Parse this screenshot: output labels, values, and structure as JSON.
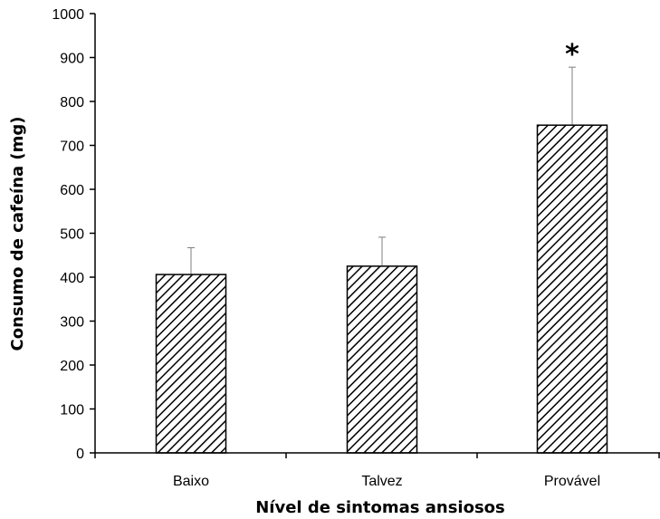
{
  "chart_data": {
    "type": "bar",
    "title": "",
    "xlabel": "Nível de sintomas ansiosos",
    "ylabel": "Consumo de cafeína (mg)",
    "categories": [
      "Baixo",
      "Talvez",
      "Provável"
    ],
    "values": [
      406,
      425,
      746
    ],
    "error_upper": [
      467,
      491,
      878
    ],
    "ylim": [
      0,
      1000
    ],
    "yticks": [
      0,
      100,
      200,
      300,
      400,
      500,
      600,
      700,
      800,
      900,
      1000
    ],
    "ytick_labels": [
      "0",
      "100",
      "200",
      "300",
      "400",
      "500",
      "600",
      "700",
      "800",
      "900",
      "1000"
    ],
    "annotations": [
      {
        "category": "Provável",
        "text": "*"
      }
    ],
    "bar_fill": "diagonal-hatch",
    "bar_color": "#000000",
    "grid": false,
    "legend": "none"
  }
}
